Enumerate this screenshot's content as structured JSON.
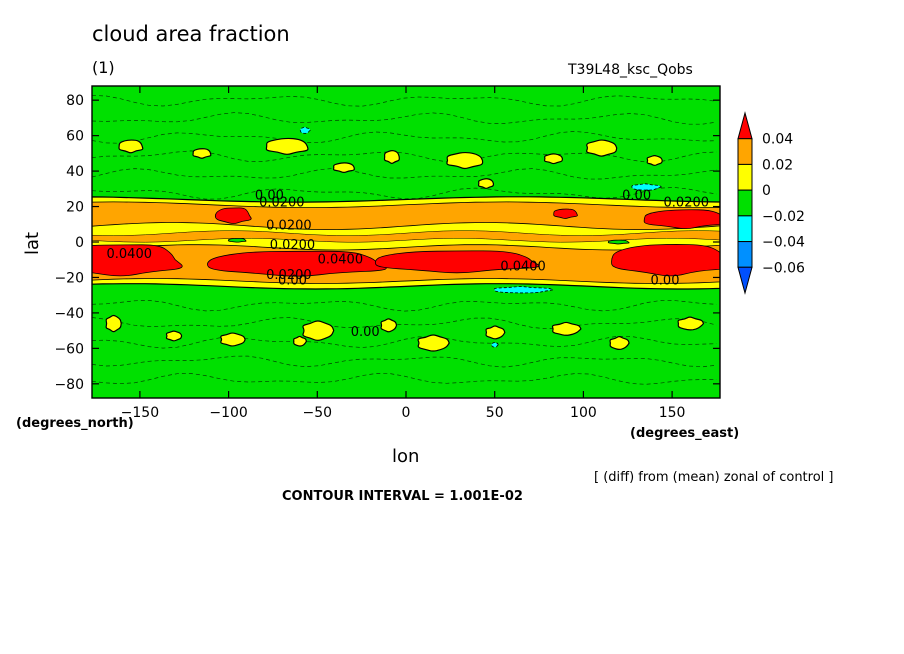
{
  "chart_data": {
    "type": "heatmap",
    "title": "cloud area fraction",
    "subtitle": "(1)",
    "run_label": "T39L48_ksc_Qobs",
    "xlabel": "lon",
    "ylabel": "lat",
    "x_units": "(degrees_east)",
    "y_units": "(degrees_north)",
    "xlim": [
      -177,
      177
    ],
    "ylim": [
      -88,
      88
    ],
    "x_ticks": [
      -150,
      -100,
      -50,
      0,
      50,
      100,
      150
    ],
    "x_tick_labels": [
      "−150",
      "−100",
      "−50",
      "0",
      "50",
      "100",
      "150"
    ],
    "y_ticks": [
      80,
      60,
      40,
      20,
      0,
      -20,
      -40,
      -60,
      -80
    ],
    "y_tick_labels": [
      "80",
      "60",
      "40",
      "20",
      "0",
      "−20",
      "−40",
      "−60",
      "−80"
    ],
    "colorbar": {
      "levels": [
        0.04,
        0.02,
        0,
        -0.02,
        -0.04,
        -0.06
      ],
      "labels": [
        "0.04",
        "0.02",
        "0",
        "−0.02",
        "−0.04",
        "−0.06"
      ],
      "colors": [
        "#ff0000",
        "#ffa500",
        "#ffff00",
        "#00e000",
        "#00ffff",
        "#0090ff",
        "#0050ff"
      ]
    },
    "contour_labels": [
      {
        "text": "0.00",
        "lon": -77,
        "lat": 24
      },
      {
        "text": "0.0200",
        "lon": -70,
        "lat": 20
      },
      {
        "text": "0.0200",
        "lon": -66,
        "lat": 7
      },
      {
        "text": "0.0200",
        "lon": -64,
        "lat": -4
      },
      {
        "text": "0.0400",
        "lon": -156,
        "lat": -9
      },
      {
        "text": "0.0400",
        "lon": -37,
        "lat": -12
      },
      {
        "text": "0.0400",
        "lon": 66,
        "lat": -16
      },
      {
        "text": "0.0200",
        "lon": -66,
        "lat": -21
      },
      {
        "text": "0.00",
        "lon": -64,
        "lat": -24
      },
      {
        "text": "0.00",
        "lon": 130,
        "lat": 24
      },
      {
        "text": "0.0200",
        "lon": 158,
        "lat": 20
      },
      {
        "text": "0.00",
        "lon": 146,
        "lat": -24
      },
      {
        "text": "0.00",
        "lon": -23,
        "lat": -53
      }
    ],
    "colors": {
      "background": "#00e000",
      "yellow": "#ffff00",
      "orange": "#ffa500",
      "red": "#ff0000",
      "cyan": "#00ffff",
      "blue": "#0090ff"
    }
  },
  "annotations": {
    "note": "[ (diff) from (mean) zonal of control ]",
    "contour_interval": "CONTOUR INTERVAL = 1.001E-02"
  }
}
